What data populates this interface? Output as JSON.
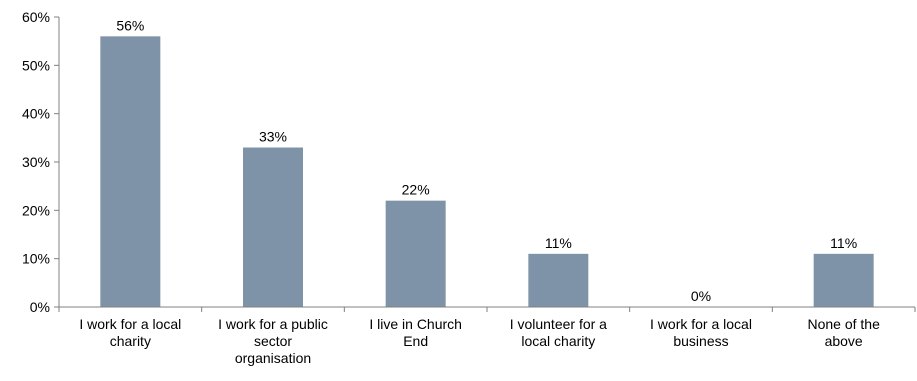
{
  "chart_data": {
    "type": "bar",
    "categories": [
      [
        "I work for a local",
        "charity"
      ],
      [
        "I work for a public",
        "sector",
        "organisation"
      ],
      [
        "I live in Church",
        "End"
      ],
      [
        "I volunteer for a",
        "local charity"
      ],
      [
        "I work for a local",
        "business"
      ],
      [
        "None of the",
        "above"
      ]
    ],
    "values": [
      56,
      33,
      22,
      11,
      0,
      11
    ],
    "data_labels": [
      "56%",
      "33%",
      "22%",
      "11%",
      "0%",
      "11%"
    ],
    "ylim": [
      0,
      60
    ],
    "yticks": [
      0,
      10,
      20,
      30,
      40,
      50,
      60
    ],
    "ytick_labels": [
      "0%",
      "10%",
      "20%",
      "30%",
      "40%",
      "50%",
      "60%"
    ],
    "title": "",
    "xlabel": "",
    "ylabel": "",
    "grid": false,
    "bar_color": "#7F93A8",
    "axis_color": "#808080"
  }
}
